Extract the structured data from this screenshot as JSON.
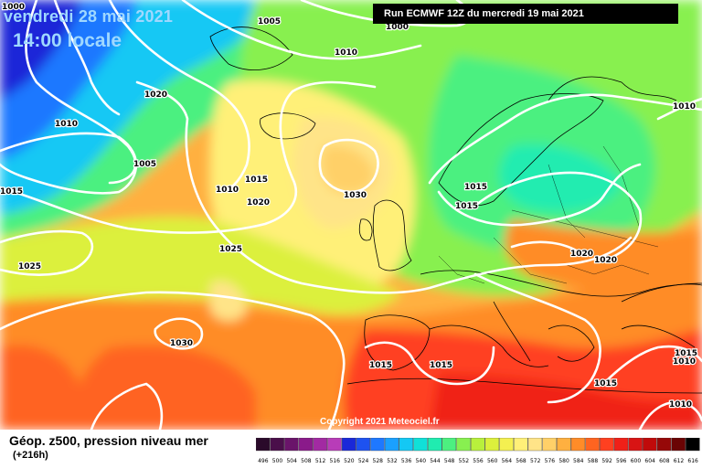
{
  "header": {
    "valid_date": "vendredi 28 mai 2021",
    "valid_time": "14:00 locale",
    "run_info": "Run ECMWF 12Z du mercredi 19 mai 2021"
  },
  "footer": {
    "field_title": "Géop. z500, pression niveau mer",
    "lead_time": "(+216h)",
    "copyright": "Copyright 2021 Meteociel.fr"
  },
  "color_scale": {
    "values": [
      "496",
      "500",
      "504",
      "508",
      "512",
      "516",
      "520",
      "524",
      "528",
      "532",
      "536",
      "540",
      "544",
      "548",
      "552",
      "556",
      "560",
      "564",
      "568",
      "572",
      "576",
      "580",
      "584",
      "588",
      "592",
      "596",
      "600",
      "604",
      "608",
      "612",
      "616"
    ],
    "colors": [
      "#2a0a2a",
      "#4a0f4a",
      "#6a146a",
      "#8a1a8a",
      "#a22aa2",
      "#b83cb8",
      "#1a28d8",
      "#1e52f0",
      "#1e78ff",
      "#1aa0ff",
      "#14c8f4",
      "#10e0d8",
      "#20ecb0",
      "#4cf080",
      "#88f050",
      "#b8f03c",
      "#dcf03c",
      "#f4f050",
      "#fff078",
      "#ffe488",
      "#ffd068",
      "#ffb040",
      "#ff8c28",
      "#ff6420",
      "#ff4020",
      "#f02018",
      "#d81414",
      "#c00a0a",
      "#960808",
      "#6a0404",
      "#000000"
    ]
  },
  "isobars": [
    {
      "label": "1000",
      "where": "top-left"
    },
    {
      "label": "1005",
      "where": "greenland"
    },
    {
      "label": "1000",
      "where": "top-center"
    },
    {
      "label": "1010",
      "where": "north-atlantic"
    },
    {
      "label": "1020",
      "where": "west-greenland"
    },
    {
      "label": "1010",
      "where": "labrador"
    },
    {
      "label": "1005",
      "where": "labrador-low"
    },
    {
      "label": "1015",
      "where": "west-edge"
    },
    {
      "label": "1010",
      "where": "mid-atlantic-low"
    },
    {
      "label": "1015",
      "where": "mid-atlantic"
    },
    {
      "label": "1020",
      "where": "mid-atlantic-south"
    },
    {
      "label": "1025",
      "where": "west-atlantic"
    },
    {
      "label": "1025",
      "where": "central-atlantic"
    },
    {
      "label": "1030",
      "where": "north-sea-high"
    },
    {
      "label": "1015",
      "where": "norway"
    },
    {
      "label": "1015",
      "where": "north-sea"
    },
    {
      "label": "1010",
      "where": "finland"
    },
    {
      "label": "1020",
      "where": "poland"
    },
    {
      "label": "1020",
      "where": "belarus"
    },
    {
      "label": "1030",
      "where": "azores"
    },
    {
      "label": "1015",
      "where": "iberia"
    },
    {
      "label": "1015",
      "where": "western-med"
    },
    {
      "label": "1015",
      "where": "greece"
    },
    {
      "label": "1015",
      "where": "east-med"
    },
    {
      "label": "1010",
      "where": "levant"
    },
    {
      "label": "1010",
      "where": "north-africa-east"
    }
  ],
  "palette": {
    "background": "#ffffff",
    "isobar": "#ffffff",
    "coast": "#000000",
    "header_text": "#9fd8ff"
  }
}
